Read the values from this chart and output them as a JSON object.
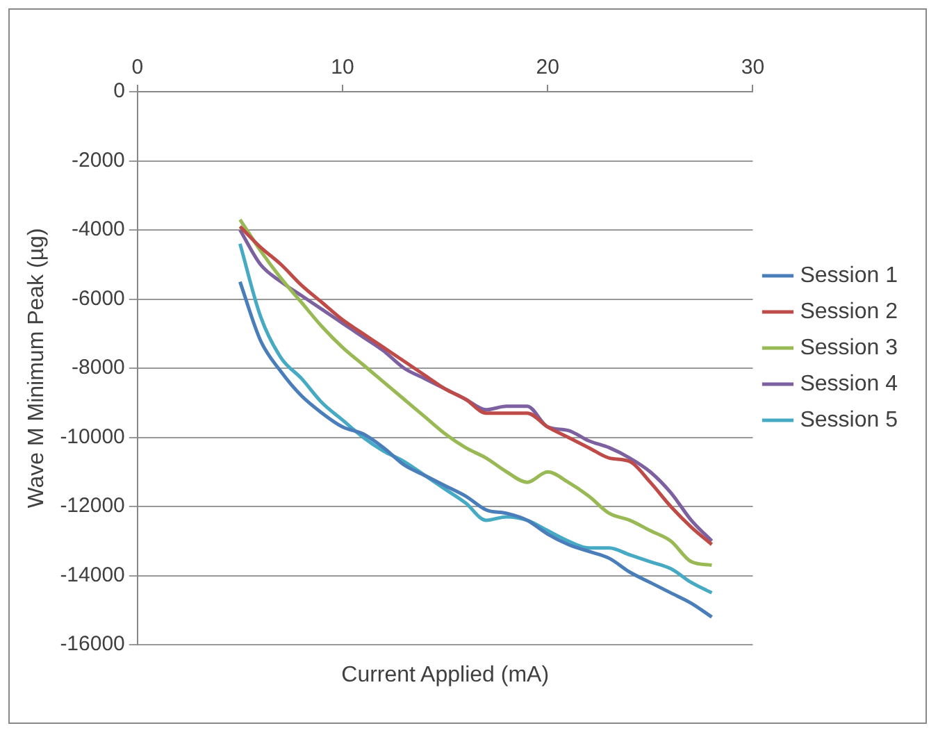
{
  "chart_data": {
    "type": "line",
    "xlabel": "Current Applied (mA)",
    "ylabel": "Wave M Minimum Peak (µg)",
    "x": [
      5,
      6,
      7,
      8,
      9,
      10,
      11,
      12,
      13,
      14,
      15,
      16,
      17,
      18,
      19,
      20,
      21,
      22,
      23,
      24,
      25,
      26,
      27,
      28
    ],
    "series": [
      {
        "name": "Session 1",
        "color": "#4a7ebb",
        "values": [
          -5500,
          -7200,
          -8100,
          -8800,
          -9300,
          -9700,
          -9900,
          -10300,
          -10800,
          -11100,
          -11400,
          -11700,
          -12100,
          -12200,
          -12400,
          -12800,
          -13100,
          -13300,
          -13500,
          -13900,
          -14200,
          -14500,
          -14800,
          -15200
        ]
      },
      {
        "name": "Session 2",
        "color": "#be4b48",
        "values": [
          -3900,
          -4500,
          -5000,
          -5600,
          -6100,
          -6600,
          -7000,
          -7400,
          -7800,
          -8200,
          -8600,
          -8900,
          -9300,
          -9300,
          -9300,
          -9700,
          -10000,
          -10300,
          -10600,
          -10700,
          -11300,
          -12000,
          -12600,
          -13100
        ]
      },
      {
        "name": "Session 3",
        "color": "#98b954",
        "values": [
          -3700,
          -4600,
          -5400,
          -6100,
          -6800,
          -7400,
          -7900,
          -8400,
          -8900,
          -9400,
          -9900,
          -10300,
          -10600,
          -11000,
          -11300,
          -11000,
          -11300,
          -11700,
          -12200,
          -12400,
          -12700,
          -13000,
          -13600,
          -13700
        ]
      },
      {
        "name": "Session 4",
        "color": "#7d60a0",
        "values": [
          -4000,
          -5000,
          -5500,
          -5900,
          -6300,
          -6700,
          -7100,
          -7500,
          -8000,
          -8300,
          -8600,
          -8900,
          -9200,
          -9100,
          -9100,
          -9700,
          -9800,
          -10100,
          -10300,
          -10600,
          -11000,
          -11600,
          -12400,
          -13000
        ]
      },
      {
        "name": "Session 5",
        "color": "#46aac5",
        "values": [
          -4400,
          -6500,
          -7700,
          -8300,
          -9000,
          -9500,
          -10000,
          -10400,
          -10700,
          -11100,
          -11500,
          -11900,
          -12400,
          -12300,
          -12400,
          -12700,
          -13000,
          -13200,
          -13200,
          -13400,
          -13600,
          -13800,
          -14200,
          -14500
        ]
      }
    ],
    "xlim": [
      0,
      30
    ],
    "xticks": [
      0,
      10,
      20,
      30
    ],
    "ylim": [
      -16000,
      0
    ],
    "yticks": [
      0,
      -2000,
      -4000,
      -6000,
      -8000,
      -10000,
      -12000,
      -14000,
      -16000
    ],
    "grid": "y",
    "legend": "right",
    "marker": "none",
    "line_style": "solid"
  }
}
